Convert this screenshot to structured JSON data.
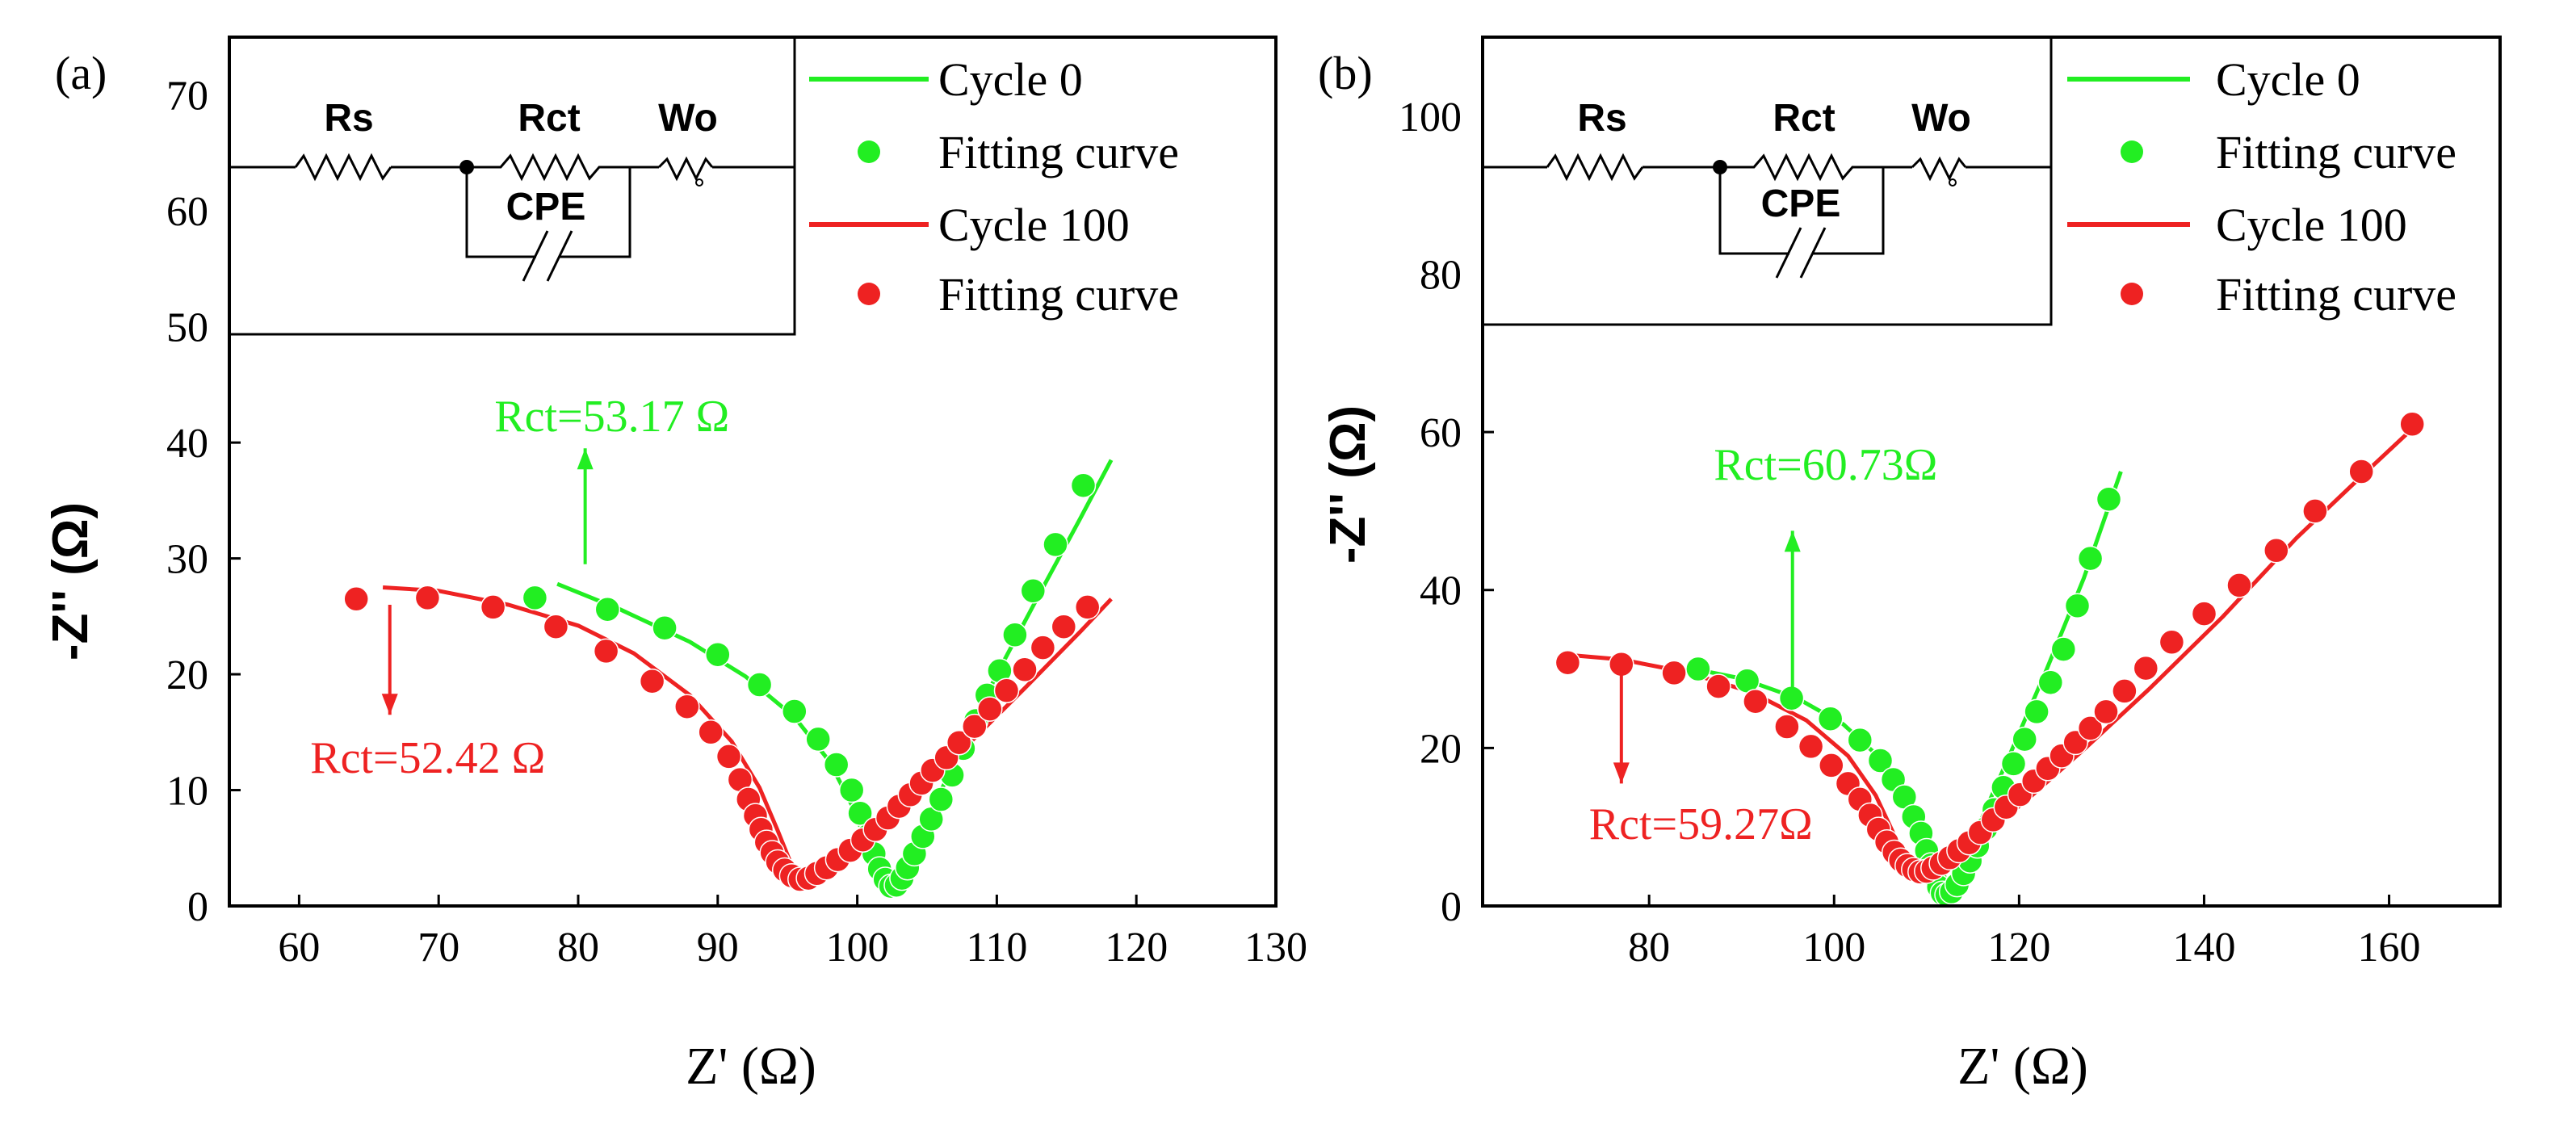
{
  "chart_data": [
    {
      "type": "scatter",
      "panel_label": "(a)",
      "xlabel": "Z' (Ω)",
      "ylabel": "-Z'' (Ω)",
      "xlim": [
        55,
        130
      ],
      "ylim": [
        0,
        75
      ],
      "xticks": [
        60,
        70,
        80,
        90,
        100,
        110,
        120,
        130
      ],
      "yticks": [
        0,
        10,
        20,
        30,
        40,
        50,
        60,
        70
      ],
      "colors": {
        "cycle0": "#22ee22",
        "cycle100": "#ee2222"
      },
      "legend": [
        "Cycle 0",
        "Fitting curve",
        "Cycle 100",
        "Fitting curve"
      ],
      "circuit": {
        "rs": "Rs",
        "rct": "Rct",
        "wo": "Wo",
        "cpe": "CPE"
      },
      "annotations": [
        {
          "series": "cycle0",
          "text": "Rct=53.17 Ω",
          "rct_value": 53.17,
          "arrow_x": 80.5,
          "arrow_from": 29.5,
          "arrow_to": 39.5,
          "label_x": 74,
          "label_y": 41,
          "direction": "up"
        },
        {
          "series": "cycle100",
          "text": "Rct=52.42 Ω",
          "rct_value": 52.42,
          "arrow_x": 66.5,
          "arrow_from": 26,
          "arrow_to": 16.5,
          "label_x": 60.8,
          "label_y": 11.5,
          "direction": "down"
        }
      ],
      "series": [
        {
          "name": "Cycle 0",
          "type": "line",
          "key": "cycle0",
          "points": [
            [
              78.5,
              27.8
            ],
            [
              83,
              25.6
            ],
            [
              88,
              22.8
            ],
            [
              92,
              19.8
            ],
            [
              95.5,
              16.3
            ],
            [
              98,
              12.5
            ],
            [
              99.7,
              8.5
            ],
            [
              100.8,
              5
            ],
            [
              101.6,
              2.5
            ],
            [
              102.3,
              1.5
            ],
            [
              103,
              2.3
            ],
            [
              104,
              4.7
            ],
            [
              105.5,
              8.7
            ],
            [
              107.5,
              13.7
            ],
            [
              110,
              20
            ],
            [
              113,
              26.8
            ],
            [
              116,
              33.5
            ],
            [
              118.2,
              38.5
            ]
          ]
        },
        {
          "name": "Fitting curve",
          "type": "scatter",
          "key": "cycle0",
          "points": [
            [
              76.9,
              26.6
            ],
            [
              82.1,
              25.6
            ],
            [
              86.2,
              24
            ],
            [
              90,
              21.7
            ],
            [
              93,
              19.1
            ],
            [
              95.5,
              16.8
            ],
            [
              97.2,
              14.4
            ],
            [
              98.5,
              12.2
            ],
            [
              99.6,
              10
            ],
            [
              100.2,
              8
            ],
            [
              100.7,
              6
            ],
            [
              101.2,
              4.5
            ],
            [
              101.6,
              3.2
            ],
            [
              102,
              2.3
            ],
            [
              102.4,
              1.7
            ],
            [
              102.8,
              1.8
            ],
            [
              103.2,
              2.4
            ],
            [
              103.6,
              3.3
            ],
            [
              104.1,
              4.5
            ],
            [
              104.7,
              6
            ],
            [
              105.3,
              7.5
            ],
            [
              106,
              9.2
            ],
            [
              106.8,
              11.3
            ],
            [
              107.6,
              13.6
            ],
            [
              108.5,
              16
            ],
            [
              109.3,
              18.2
            ],
            [
              110.2,
              20.3
            ],
            [
              111.3,
              23.4
            ],
            [
              112.6,
              27.2
            ],
            [
              114.2,
              31.2
            ],
            [
              116.2,
              36.3
            ]
          ]
        },
        {
          "name": "Cycle 100",
          "type": "line",
          "key": "cycle100",
          "points": [
            [
              66,
              27.5
            ],
            [
              70,
              27.2
            ],
            [
              75,
              26
            ],
            [
              80,
              24.2
            ],
            [
              84,
              21.8
            ],
            [
              88,
              18.2
            ],
            [
              91,
              14.2
            ],
            [
              93,
              10.2
            ],
            [
              94.3,
              6.5
            ],
            [
              95.2,
              3.8
            ],
            [
              96,
              2.5
            ],
            [
              97,
              2.7
            ],
            [
              99,
              4
            ],
            [
              101.5,
              6.3
            ],
            [
              104.5,
              9.8
            ],
            [
              108,
              14
            ],
            [
              112,
              18.8
            ],
            [
              116,
              23.7
            ],
            [
              118.2,
              26.5
            ]
          ]
        },
        {
          "name": "Fitting curve",
          "type": "scatter",
          "key": "cycle100",
          "points": [
            [
              64.1,
              26.5
            ],
            [
              69.2,
              26.6
            ],
            [
              73.9,
              25.8
            ],
            [
              78.4,
              24.1
            ],
            [
              82,
              22
            ],
            [
              85.3,
              19.4
            ],
            [
              87.8,
              17.2
            ],
            [
              89.5,
              15
            ],
            [
              90.8,
              12.9
            ],
            [
              91.6,
              10.9
            ],
            [
              92.2,
              9.2
            ],
            [
              92.7,
              7.8
            ],
            [
              93.1,
              6.6
            ],
            [
              93.5,
              5.5
            ],
            [
              93.9,
              4.6
            ],
            [
              94.3,
              3.8
            ],
            [
              94.8,
              3.1
            ],
            [
              95.3,
              2.6
            ],
            [
              95.9,
              2.3
            ],
            [
              96.5,
              2.4
            ],
            [
              97.1,
              2.8
            ],
            [
              97.8,
              3.3
            ],
            [
              98.6,
              4
            ],
            [
              99.5,
              4.8
            ],
            [
              100.4,
              5.7
            ],
            [
              101.3,
              6.6
            ],
            [
              102.2,
              7.6
            ],
            [
              103,
              8.6
            ],
            [
              103.8,
              9.6
            ],
            [
              104.6,
              10.6
            ],
            [
              105.4,
              11.7
            ],
            [
              106.4,
              12.8
            ],
            [
              107.3,
              14.1
            ],
            [
              108.4,
              15.5
            ],
            [
              109.5,
              17
            ],
            [
              110.7,
              18.6
            ],
            [
              112,
              20.4
            ],
            [
              113.3,
              22.3
            ],
            [
              114.8,
              24.1
            ],
            [
              116.5,
              25.8
            ]
          ]
        }
      ]
    },
    {
      "type": "scatter",
      "panel_label": "(b)",
      "xlabel": "Z' (Ω)",
      "ylabel": "-Z'' (Ω)",
      "xlim": [
        62,
        172
      ],
      "ylim": [
        0,
        110
      ],
      "xticks": [
        80,
        100,
        120,
        140,
        160
      ],
      "yticks": [
        0,
        20,
        40,
        60,
        80,
        100
      ],
      "colors": {
        "cycle0": "#22ee22",
        "cycle100": "#ee2222"
      },
      "legend": [
        "Cycle 0",
        "Fitting curve",
        "Cycle 100",
        "Fitting curve"
      ],
      "circuit": {
        "rs": "Rs",
        "rct": "Rct",
        "wo": "Wo",
        "cpe": "CPE"
      },
      "annotations": [
        {
          "series": "cycle0",
          "text": "Rct=60.73Ω",
          "rct_value": 60.73,
          "arrow_x": 95.5,
          "arrow_from": 25.5,
          "arrow_to": 47.5,
          "label_x": 87,
          "label_y": 54,
          "direction": "up"
        },
        {
          "series": "cycle100",
          "text": "Rct=59.27Ω",
          "rct_value": 59.27,
          "arrow_x": 77,
          "arrow_from": 31,
          "arrow_to": 15.5,
          "label_x": 73.5,
          "label_y": 8.5,
          "direction": "down"
        }
      ],
      "series": [
        {
          "name": "Cycle 0",
          "type": "line",
          "key": "cycle0",
          "points": [
            [
              84,
              30.2
            ],
            [
              90,
              28.8
            ],
            [
              96,
              26.3
            ],
            [
              101,
              23
            ],
            [
              105,
              18.7
            ],
            [
              107.8,
              13.6
            ],
            [
              109.6,
              8.5
            ],
            [
              110.7,
              4
            ],
            [
              111.5,
              1.5
            ],
            [
              112.5,
              1.8
            ],
            [
              114,
              5.8
            ],
            [
              116.5,
              12.5
            ],
            [
              119.5,
              20.5
            ],
            [
              123,
              30
            ],
            [
              127,
              41.5
            ],
            [
              131,
              55
            ]
          ]
        },
        {
          "name": "Fitting curve",
          "type": "scatter",
          "key": "cycle0",
          "points": [
            [
              85.3,
              30
            ],
            [
              90.6,
              28.5
            ],
            [
              95.4,
              26.3
            ],
            [
              99.6,
              23.7
            ],
            [
              102.8,
              21
            ],
            [
              105,
              18.4
            ],
            [
              106.4,
              16
            ],
            [
              107.6,
              13.8
            ],
            [
              108.6,
              11.3
            ],
            [
              109.4,
              9.2
            ],
            [
              110,
              7
            ],
            [
              110.5,
              5.2
            ],
            [
              110.9,
              3.7
            ],
            [
              111.3,
              2.4
            ],
            [
              111.7,
              1.6
            ],
            [
              112.2,
              1.4
            ],
            [
              112.7,
              1.8
            ],
            [
              113.3,
              2.7
            ],
            [
              114,
              4.1
            ],
            [
              114.7,
              5.7
            ],
            [
              115.5,
              7.6
            ],
            [
              116.4,
              9.8
            ],
            [
              117.3,
              12.2
            ],
            [
              118.3,
              15
            ],
            [
              119.4,
              18
            ],
            [
              120.6,
              21.1
            ],
            [
              121.9,
              24.6
            ],
            [
              123.4,
              28.3
            ],
            [
              124.8,
              32.5
            ],
            [
              126.3,
              38
            ],
            [
              127.7,
              44
            ],
            [
              129.7,
              51.5
            ]
          ]
        },
        {
          "name": "Cycle 100",
          "type": "line",
          "key": "cycle100",
          "points": [
            [
              71,
              31.8
            ],
            [
              77,
              31.2
            ],
            [
              84,
              29.6
            ],
            [
              91,
              27.1
            ],
            [
              97,
              23.5
            ],
            [
              101.5,
              19
            ],
            [
              104.5,
              14
            ],
            [
              106.5,
              9
            ],
            [
              108,
              5.5
            ],
            [
              109.3,
              4.4
            ],
            [
              112,
              5.5
            ],
            [
              116,
              8.8
            ],
            [
              121,
              13.6
            ],
            [
              127,
              19.8
            ],
            [
              134,
              27.4
            ],
            [
              142,
              36.6
            ],
            [
              150,
              46.6
            ],
            [
              157,
              54.4
            ],
            [
              163.5,
              61.5
            ]
          ]
        },
        {
          "name": "Fitting curve",
          "type": "scatter",
          "key": "cycle100",
          "points": [
            [
              71.2,
              30.8
            ],
            [
              77,
              30.6
            ],
            [
              82.7,
              29.5
            ],
            [
              87.5,
              27.8
            ],
            [
              91.5,
              25.9
            ],
            [
              94.9,
              22.7
            ],
            [
              97.5,
              20.2
            ],
            [
              99.7,
              17.8
            ],
            [
              101.5,
              15.5
            ],
            [
              102.8,
              13.5
            ],
            [
              103.9,
              11.5
            ],
            [
              104.8,
              9.7
            ],
            [
              105.7,
              8.1
            ],
            [
              106.5,
              6.8
            ],
            [
              107.2,
              5.8
            ],
            [
              107.9,
              5.1
            ],
            [
              108.6,
              4.6
            ],
            [
              109.3,
              4.3
            ],
            [
              110,
              4.4
            ],
            [
              110.7,
              4.8
            ],
            [
              111.6,
              5.4
            ],
            [
              112.5,
              6.1
            ],
            [
              113.5,
              7
            ],
            [
              114.6,
              8
            ],
            [
              115.8,
              9.3
            ],
            [
              117.2,
              10.9
            ],
            [
              118.6,
              12.5
            ],
            [
              120.1,
              14.1
            ],
            [
              121.6,
              15.8
            ],
            [
              123.1,
              17.4
            ],
            [
              124.6,
              19
            ],
            [
              126.1,
              20.7
            ],
            [
              127.7,
              22.5
            ],
            [
              129.4,
              24.6
            ],
            [
              131.4,
              27.2
            ],
            [
              133.7,
              30.1
            ],
            [
              136.5,
              33.4
            ],
            [
              140,
              37
            ],
            [
              143.8,
              40.6
            ],
            [
              147.8,
              45
            ],
            [
              152,
              50
            ],
            [
              157,
              55
            ],
            [
              162.5,
              61
            ]
          ]
        }
      ]
    }
  ]
}
